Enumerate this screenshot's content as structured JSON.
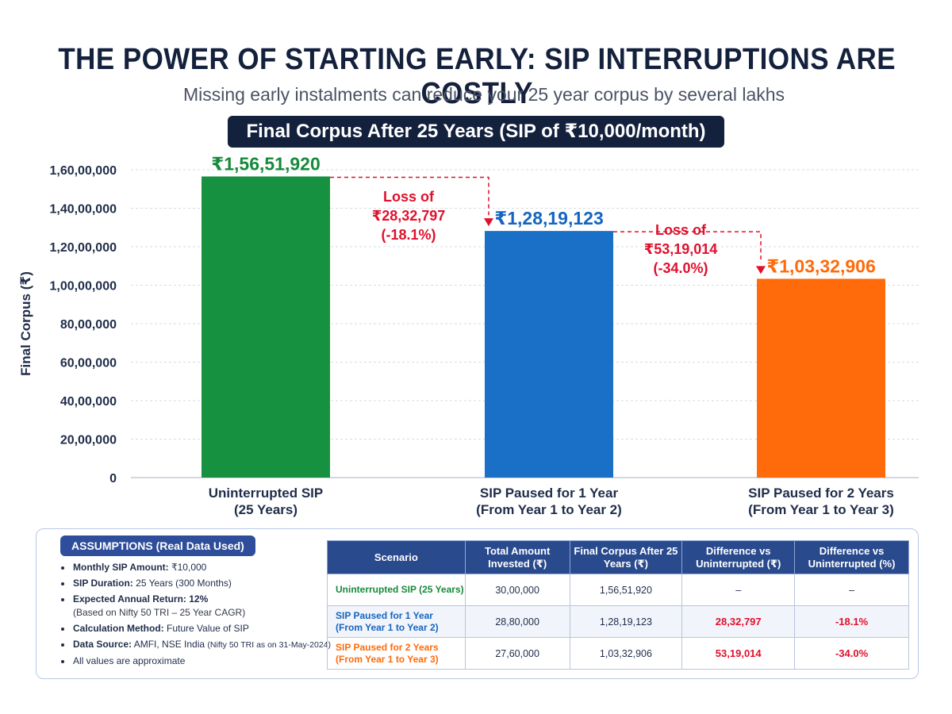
{
  "header": {
    "title": "THE POWER OF STARTING EARLY: SIP INTERRUPTIONS ARE COSTLY",
    "subtitle": "Missing early instalments can reduce your 25 year corpus by several lakhs",
    "badge": "Final Corpus After 25 Years (SIP of ₹10,000/month)"
  },
  "chart_data": {
    "type": "bar",
    "ylabel": "Final Corpus (₹)",
    "ylim": [
      0,
      16000000
    ],
    "y_ticks": [
      0,
      2000000,
      4000000,
      6000000,
      8000000,
      10000000,
      12000000,
      14000000,
      16000000
    ],
    "y_tick_labels": [
      "0",
      "20,00,000",
      "40,00,000",
      "60,00,000",
      "80,00,000",
      "1,00,00,000",
      "1,20,00,000",
      "1,40,00,000",
      "1,60,00,000"
    ],
    "grid": true,
    "categories": [
      [
        "Uninterrupted SIP",
        "(25 Years)"
      ],
      [
        "SIP Paused for 1 Year",
        "(From Year 1 to Year 2)"
      ],
      [
        "SIP Paused for 2 Years",
        "(From Year 1 to Year 3)"
      ]
    ],
    "values": [
      15651920,
      12819123,
      10332906
    ],
    "value_labels": [
      "₹1,56,51,920",
      "₹1,28,19,123",
      "₹1,03,32,906"
    ],
    "colors": [
      "#169140",
      "#1a6fc7",
      "#ff6a0a"
    ],
    "label_colors": [
      "#168a3a",
      "#1565c0",
      "#ff6a0a"
    ],
    "annotations": [
      {
        "lines": [
          "Loss of",
          "₹28,32,797",
          "(-18.1%)"
        ],
        "color": "#e0102c"
      },
      {
        "lines": [
          "Loss of",
          "₹53,19,014",
          "(-34.0%)"
        ],
        "color": "#e0102c"
      }
    ]
  },
  "assumptions": {
    "heading": "ASSUMPTIONS (Real Data Used)",
    "items": [
      {
        "label": "Monthly SIP Amount:",
        "value": "₹10,000"
      },
      {
        "label": "SIP Duration:",
        "value": "25 Years (300 Months)"
      },
      {
        "label": "Expected Annual Return: 12%",
        "value": "",
        "note": "(Based on Nifty 50 TRI – 25 Year CAGR)"
      },
      {
        "label": "Calculation Method:",
        "value": "Future Value of SIP"
      },
      {
        "label": "Data Source:",
        "value": "AMFI, NSE India",
        "small": "(Nifty 50 TRI as on 31-May-2024)"
      },
      {
        "label": "",
        "value": "All values are approximate"
      }
    ]
  },
  "table": {
    "headers": [
      "Scenario",
      "Total Amount Invested (₹)",
      "Final Corpus After 25 Years (₹)",
      "Difference vs Uninterrupted (₹)",
      "Difference vs Uninterrupted (%)"
    ],
    "rows": [
      {
        "scenario": [
          "Uninterrupted SIP (25 Years)"
        ],
        "color": "#168a3a",
        "invested": "30,00,000",
        "corpus": "1,56,51,920",
        "diff": "–",
        "pct": "–"
      },
      {
        "scenario": [
          "SIP Paused for 1 Year",
          "(From Year 1 to Year 2)"
        ],
        "color": "#1565c0",
        "invested": "28,80,000",
        "corpus": "1,28,19,123",
        "diff": "28,32,797",
        "pct": "-18.1%"
      },
      {
        "scenario": [
          "SIP Paused for 2 Years",
          "(From Year 1 to Year 3)"
        ],
        "color": "#ff6a0a",
        "invested": "27,60,000",
        "corpus": "1,03,32,906",
        "diff": "53,19,014",
        "pct": "-34.0%"
      }
    ]
  }
}
